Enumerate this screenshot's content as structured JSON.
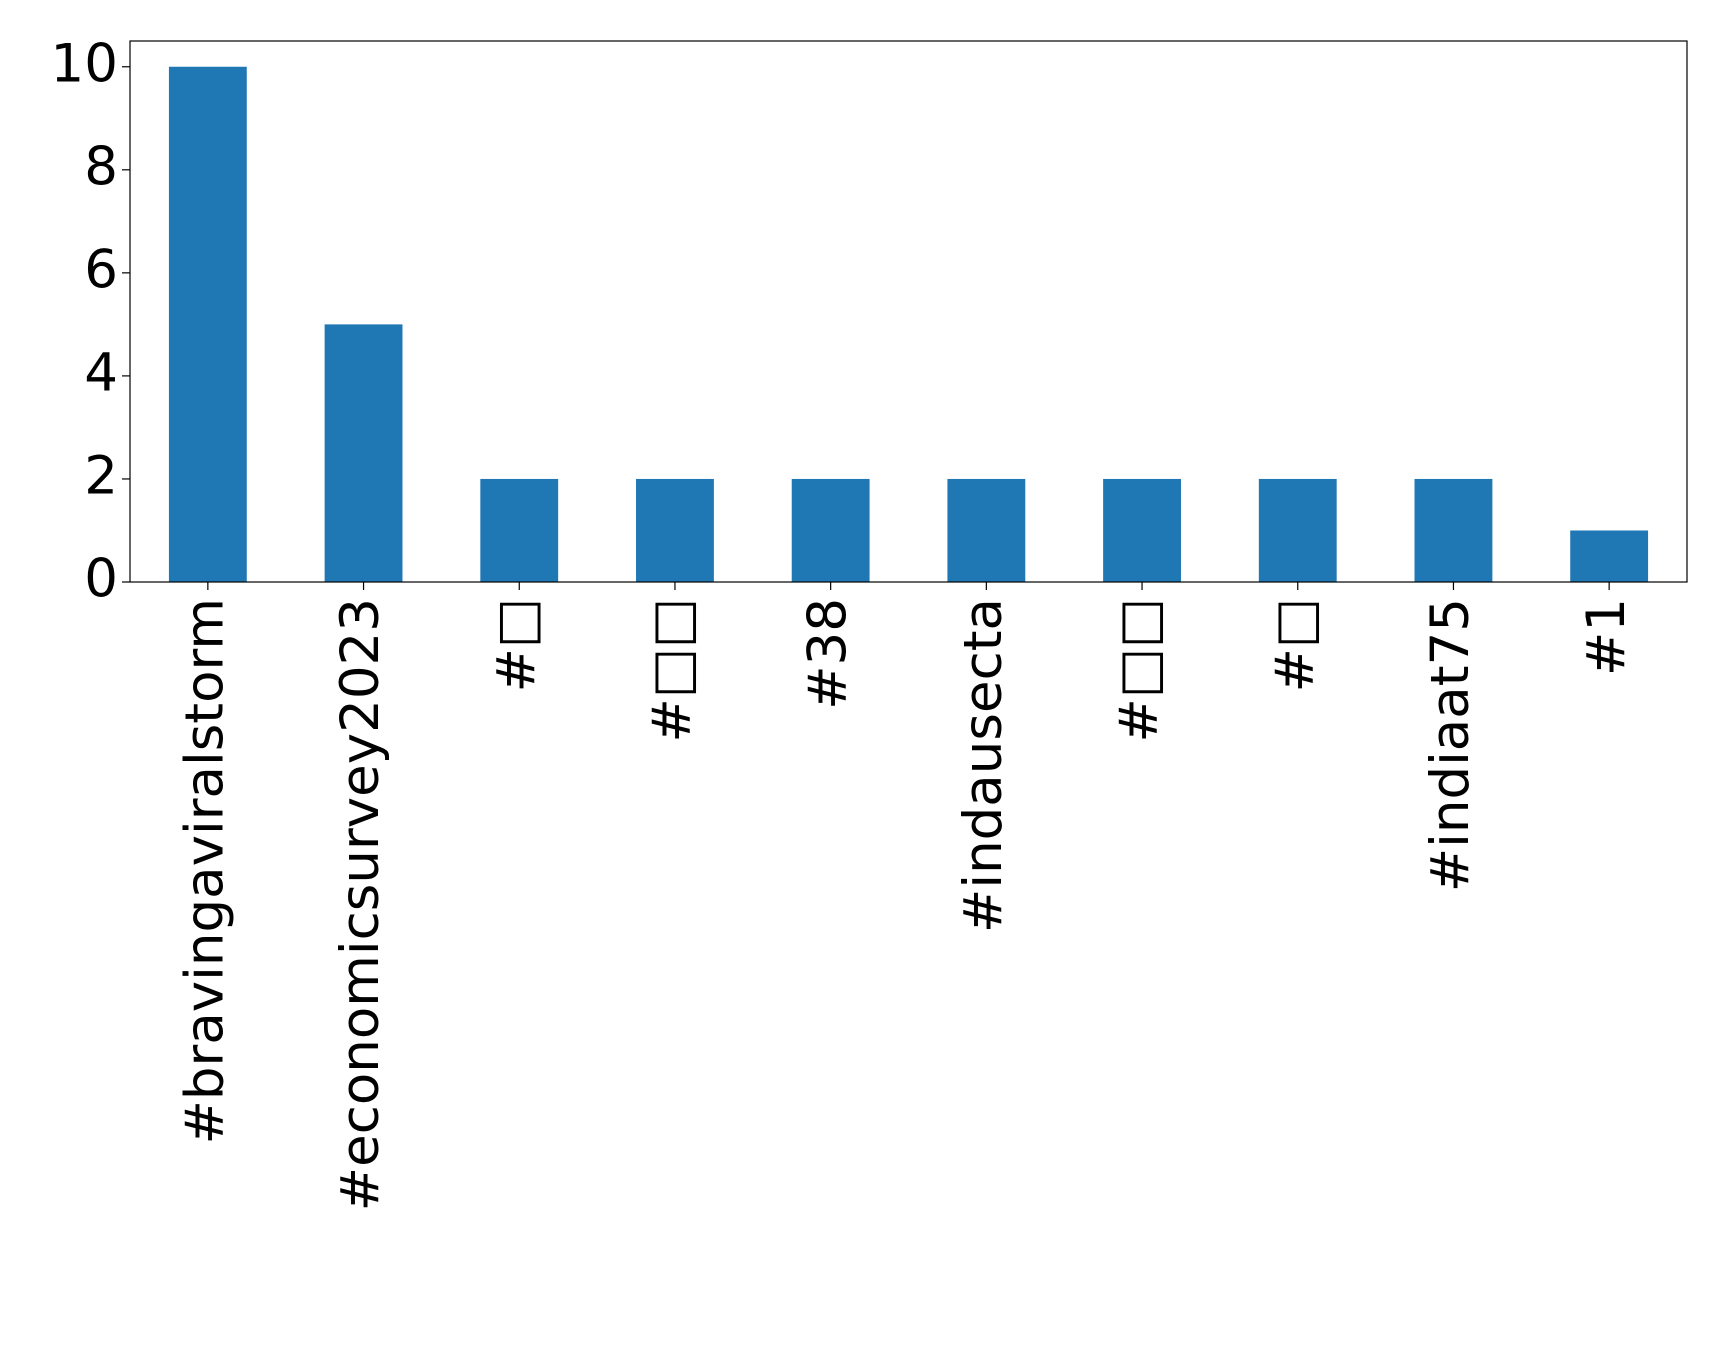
{
  "chart_data": {
    "type": "bar",
    "categories": [
      "#bravingaviralstorm",
      "#economicsurvey2023",
      "#□",
      "#□□",
      "#38",
      "#indausecta",
      "#□□",
      "#□",
      "#indiaat75",
      "#1"
    ],
    "values": [
      10,
      5,
      2,
      2,
      2,
      2,
      2,
      2,
      2,
      1
    ],
    "color": "#1f77b4",
    "ylim": [
      0,
      10.5
    ],
    "yticks": [
      0,
      2,
      4,
      6,
      8,
      10
    ],
    "grid": false
  }
}
